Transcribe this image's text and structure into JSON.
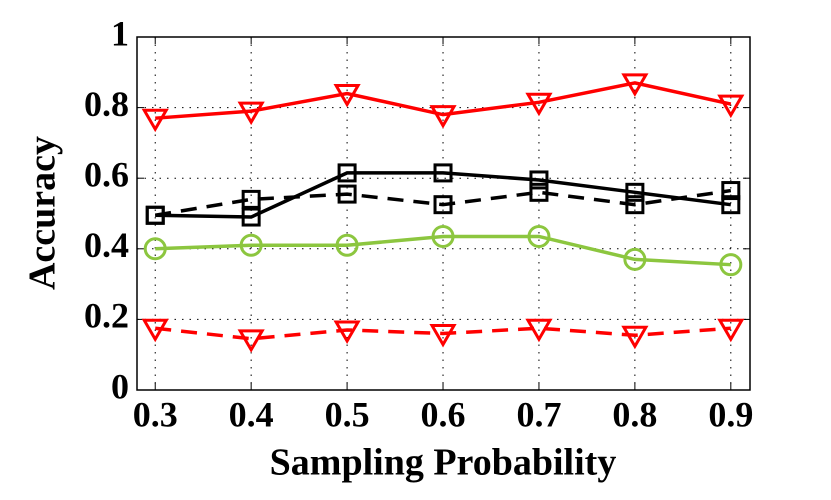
{
  "chart_data": {
    "type": "line",
    "x_label": "Sampling Probability",
    "y_label": "Accuracy",
    "x": [
      0.3,
      0.4,
      0.5,
      0.6,
      0.7,
      0.8,
      0.9
    ],
    "xlim": [
      0.281,
      0.92
    ],
    "xticks": [
      0.3,
      0.4,
      0.5,
      0.6,
      0.7,
      0.8,
      0.9
    ],
    "ylim": [
      0,
      1
    ],
    "yticks": [
      0,
      0.2,
      0.4,
      0.6,
      0.8,
      1
    ],
    "grid": true,
    "series": [
      {
        "color": "#ff0000",
        "dash": false,
        "marker": "triangle-down",
        "values": [
          0.77,
          0.79,
          0.84,
          0.78,
          0.815,
          0.87,
          0.81
        ]
      },
      {
        "color": "#000000",
        "dash": false,
        "marker": "square",
        "values": [
          0.495,
          0.49,
          0.615,
          0.615,
          0.595,
          0.56,
          0.525
        ]
      },
      {
        "color": "#000000",
        "dash": true,
        "marker": "square",
        "values": [
          0.495,
          0.54,
          0.555,
          0.525,
          0.56,
          0.525,
          0.565
        ]
      },
      {
        "color": "#8cc63f",
        "dash": false,
        "marker": "circle",
        "values": [
          0.4,
          0.41,
          0.41,
          0.435,
          0.435,
          0.37,
          0.355
        ]
      },
      {
        "color": "#ff0000",
        "dash": true,
        "marker": "triangle-down",
        "values": [
          0.175,
          0.145,
          0.17,
          0.16,
          0.175,
          0.155,
          0.175
        ]
      }
    ]
  }
}
